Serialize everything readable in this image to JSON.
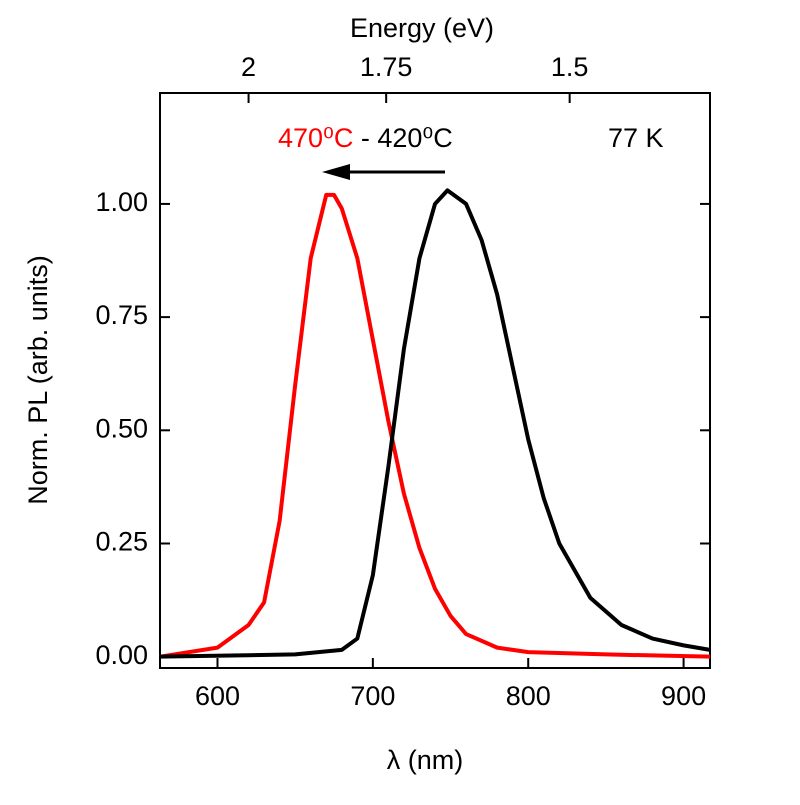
{
  "chart_data": {
    "type": "line",
    "xlabel": "λ (nm)",
    "ylabel": "Norm. PL (arb. units)",
    "x2label": "Energy (eV)",
    "xlim": [
      563,
      917
    ],
    "xticks": [
      600,
      700,
      800,
      900
    ],
    "ylim": [
      -0.025,
      1.245
    ],
    "yticks": [
      {
        "value": 0,
        "label": "0.00"
      },
      {
        "value": 0.25,
        "label": "0.25"
      },
      {
        "value": 0.5,
        "label": "0.50"
      },
      {
        "value": 0.75,
        "label": "0.75"
      },
      {
        "value": 1,
        "label": "1.00"
      }
    ],
    "x2ticks": [
      2,
      {
        "value": 1.75,
        "label": "1.75"
      },
      {
        "value": 1.5,
        "label": "1.5"
      }
    ],
    "annotations": [
      "470⁰C",
      " - 420⁰C",
      "77 K"
    ],
    "series": [
      {
        "name": "470⁰C",
        "color": "#ff0000",
        "x": [
          563,
          600,
          620,
          630,
          640,
          650,
          660,
          670,
          675,
          680,
          690,
          700,
          710,
          720,
          730,
          740,
          750,
          760,
          780,
          800,
          850,
          917
        ],
        "values": [
          0.0,
          0.02,
          0.07,
          0.12,
          0.3,
          0.6,
          0.88,
          1.02,
          1.02,
          0.99,
          0.88,
          0.7,
          0.52,
          0.36,
          0.24,
          0.15,
          0.09,
          0.05,
          0.02,
          0.01,
          0.005,
          0.0
        ]
      },
      {
        "name": "420⁰C",
        "color": "#000000",
        "x": [
          563,
          650,
          680,
          690,
          700,
          710,
          720,
          730,
          740,
          748,
          760,
          770,
          780,
          790,
          800,
          810,
          820,
          840,
          860,
          880,
          900,
          917
        ],
        "values": [
          0.0,
          0.005,
          0.015,
          0.04,
          0.18,
          0.42,
          0.68,
          0.88,
          1.0,
          1.03,
          1.0,
          0.92,
          0.8,
          0.64,
          0.48,
          0.35,
          0.25,
          0.13,
          0.07,
          0.04,
          0.025,
          0.015
        ]
      }
    ]
  }
}
